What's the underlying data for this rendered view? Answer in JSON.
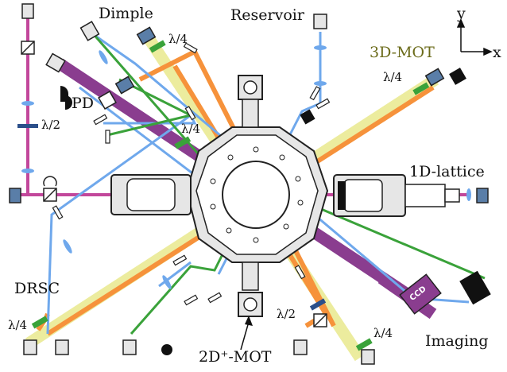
{
  "colors": {
    "magenta": "#c2479b",
    "yellow": "#ecec9e",
    "orange": "#f6923b",
    "purple": "#8a3d8f",
    "blue": "#6fa8ec",
    "green": "#3aa23a",
    "waveplate": "#2b4f8a",
    "chamber": "#e6e6e6"
  },
  "labels": {
    "dimple": "Dimple",
    "reservoir": "Reservoir",
    "mot3d": "3D-MOT",
    "lattice1d": "1D-lattice",
    "drsc": "DRSC",
    "imaging": "Imaging",
    "mot2d": "2D⁺-MOT",
    "pd": "PD",
    "ccd": "CCD",
    "axis_y": "y",
    "axis_x": "x"
  },
  "waveplates": {
    "half_left": "λ/2",
    "quarter_dimple": "λ/4",
    "quarter_center": "λ/4",
    "quarter_3dmot": "λ/4",
    "quarter_drsc": "λ/4",
    "half_bottom": "λ/2",
    "quarter_bottom": "λ/4"
  },
  "icons": [
    "fiber-coupler-icon",
    "camera-icon",
    "mirror-icon",
    "lens-icon",
    "beam-splitter-icon",
    "photodiode-icon",
    "rotation-mount-icon"
  ]
}
